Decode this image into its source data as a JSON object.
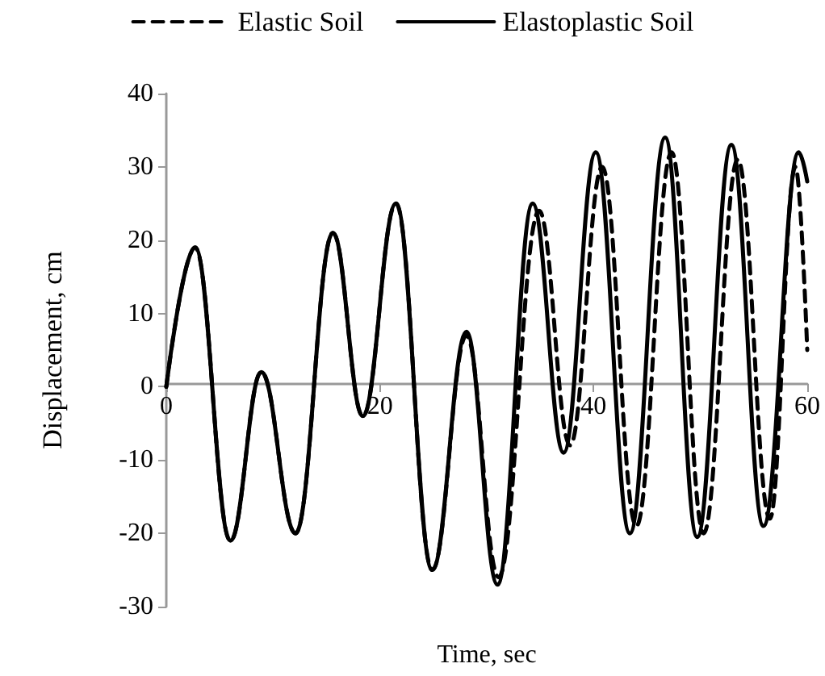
{
  "chart_data": {
    "type": "line",
    "xlabel": "Time, sec",
    "ylabel": "Displacement, cm",
    "xlim": [
      0,
      60
    ],
    "xticks": [
      0,
      20,
      40,
      60
    ],
    "ylim": [
      -30,
      40
    ],
    "yticks": [
      -30,
      -20,
      -10,
      0,
      10,
      20,
      30,
      40
    ],
    "grid": false,
    "legend": "top",
    "marker": "none",
    "series": [
      {
        "name": "Elastic Soil",
        "color": "#000000",
        "line_style": "dashed",
        "x": [
          0,
          2.7,
          6.0,
          8.9,
          12.1,
          15.6,
          18.4,
          21.5,
          24.9,
          28.1,
          31.1,
          34.9,
          37.8,
          40.8,
          44.0,
          47.3,
          50.3,
          53.5,
          56.5,
          58.9,
          60
        ],
        "values": [
          0,
          19,
          -21,
          2,
          -20,
          21,
          -4,
          25,
          -25,
          7,
          -26,
          24,
          -8,
          30,
          -19,
          32,
          -20,
          31,
          -18,
          30,
          5
        ]
      },
      {
        "name": "Elastoplastic Soil",
        "color": "#000000",
        "line_style": "solid",
        "x": [
          0,
          2.7,
          6.0,
          8.9,
          12.1,
          15.6,
          18.4,
          21.5,
          24.9,
          28.1,
          31.0,
          34.3,
          37.2,
          40.2,
          43.4,
          46.7,
          49.7,
          52.9,
          55.9,
          59.2,
          60
        ],
        "values": [
          0,
          19,
          -21,
          2,
          -20,
          21,
          -4,
          25,
          -25,
          7.5,
          -27,
          25,
          -9,
          32,
          -20,
          34,
          -20.5,
          33,
          -19,
          32,
          28
        ]
      }
    ]
  }
}
